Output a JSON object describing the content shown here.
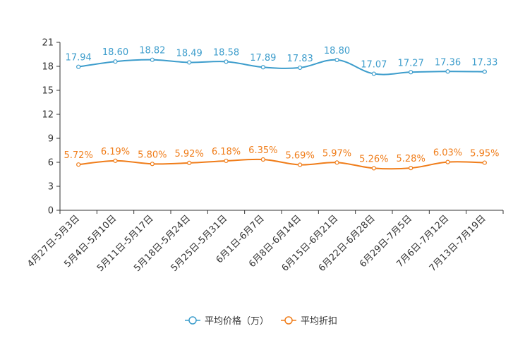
{
  "chart_data": {
    "type": "line",
    "title": "",
    "xlabel": "",
    "ylabel": "",
    "ylim": [
      0,
      21
    ],
    "yticks": [
      0,
      3,
      6,
      9,
      12,
      15,
      18,
      21
    ],
    "grid": false,
    "legend_position": "bottom-center",
    "categories": [
      "4月27日-5月3日",
      "5月4日-5月10日",
      "5月11日-5月17日",
      "5月18日-5月24日",
      "5月25日-5月31日",
      "6月1日-6月7日",
      "6月8日-6月14日",
      "6月15日-6月21日",
      "6月22日-6月28日",
      "6月29日-7月5日",
      "7月6日-7月12日",
      "7月13日-7月19日"
    ],
    "series": [
      {
        "name": "平均价格（万）",
        "color": "#3d9dcc",
        "values": [
          17.94,
          18.6,
          18.82,
          18.49,
          18.58,
          17.89,
          17.83,
          18.8,
          17.07,
          17.27,
          17.36,
          17.33
        ],
        "labels": [
          "17.94",
          "18.60",
          "18.82",
          "18.49",
          "18.58",
          "17.89",
          "17.83",
          "18.80",
          "17.07",
          "17.27",
          "17.36",
          "17.33"
        ]
      },
      {
        "name": "平均折扣",
        "color": "#f07d1a",
        "values": [
          5.72,
          6.19,
          5.8,
          5.92,
          6.18,
          6.35,
          5.69,
          5.97,
          5.26,
          5.28,
          6.03,
          5.95
        ],
        "labels": [
          "5.72%",
          "6.19%",
          "5.80%",
          "5.92%",
          "6.18%",
          "6.35%",
          "5.69%",
          "5.97%",
          "5.26%",
          "5.28%",
          "6.03%",
          "5.95%"
        ]
      }
    ]
  }
}
